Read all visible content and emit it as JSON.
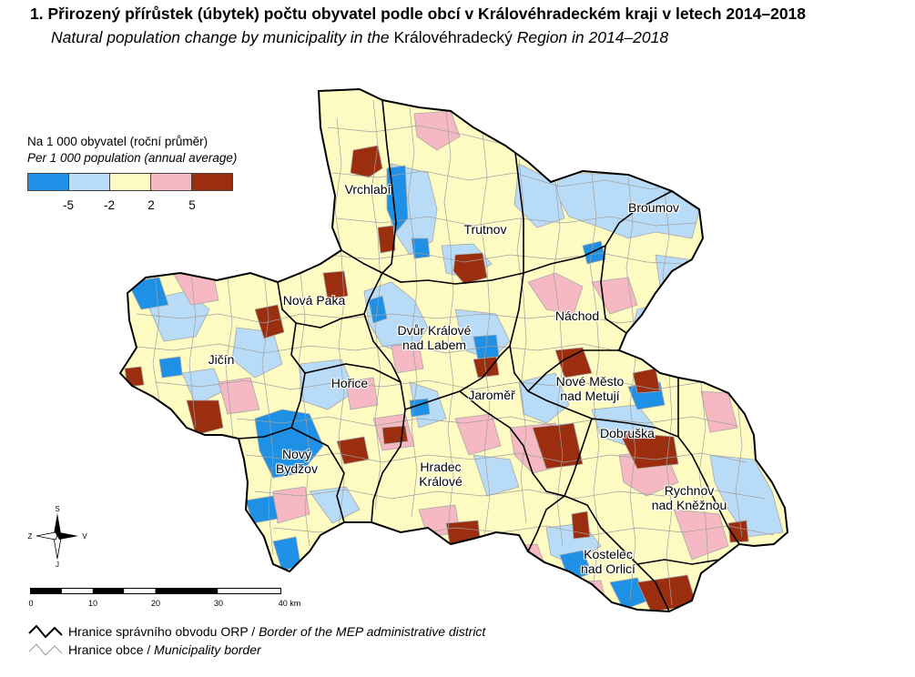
{
  "title": {
    "cz": "1. Přirozený přírůstek (úbytek) počtu obyvatel podle obcí v Královéhradeckém kraji v letech 2014–2018",
    "en_part1": "Natural population change by municipality in the ",
    "en_part2": "Královéhradecký",
    "en_part3": " Region in 2014–2018"
  },
  "legend": {
    "unit_cz": "Na 1 000 obyvatel (roční průměr)",
    "unit_en": "Per 1 000 population (annual average)",
    "classes": [
      {
        "color": "#1e90e6"
      },
      {
        "color": "#b8dcf7"
      },
      {
        "color": "#fdfbc2"
      },
      {
        "color": "#f6b9c3"
      },
      {
        "color": "#9b2e0f"
      }
    ],
    "thresholds": [
      "-5",
      "-2",
      "2",
      "5"
    ]
  },
  "towns": [
    {
      "name": "Vrchlabí"
    },
    {
      "name": "Trutnov"
    },
    {
      "name": "Broumov"
    },
    {
      "name": "Nová Paka"
    },
    {
      "name": "Dvůr Králové",
      "name2": "nad Labem"
    },
    {
      "name": "Náchod"
    },
    {
      "name": "Jičín"
    },
    {
      "name": "Hořice"
    },
    {
      "name": "Jaroměř"
    },
    {
      "name": "Nové Město",
      "name2": "nad Metují"
    },
    {
      "name": "Dobruška"
    },
    {
      "name": "Nový",
      "name2": "Bydžov"
    },
    {
      "name": "Hradec",
      "name2": "Králové"
    },
    {
      "name": "Rychnov",
      "name2": "nad Kněžnou"
    },
    {
      "name": "Kostelec",
      "name2": "nad Orlicí"
    }
  ],
  "compass": {
    "north": "S",
    "south": "J",
    "west": "Z",
    "east": "V"
  },
  "scale": {
    "labels": [
      "0",
      "10",
      "20",
      "30",
      "40 km"
    ]
  },
  "border_legend": {
    "orp_cz": "Hranice správního obvodu ORP / ",
    "orp_en": "Border of the MEP administrative district",
    "mun_cz": "Hranice obce / ",
    "mun_en": "Municipality border"
  }
}
